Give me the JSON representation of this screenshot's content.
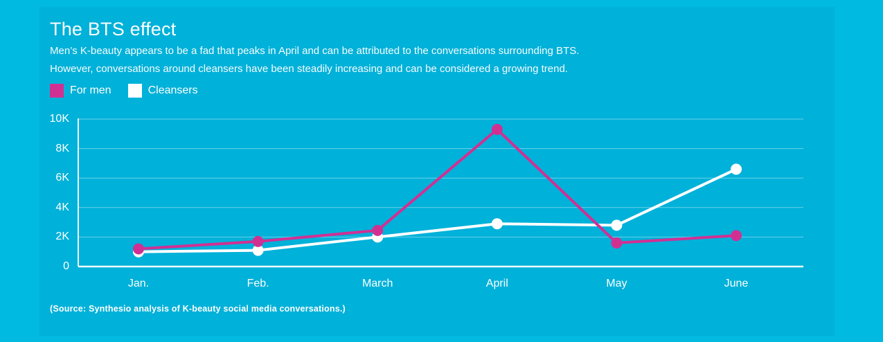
{
  "header": {
    "title": "The BTS effect",
    "subtitle_line1": "Men’s K-beauty appears to be a fad that peaks in April and can be attributed to the conversations surrounding BTS.",
    "subtitle_line2": "However, conversations around cleansers have been steadily increasing and can be considered a growing trend."
  },
  "legend": [
    {
      "label": "For men",
      "color": "#d13093"
    },
    {
      "label": "Cleansers",
      "color": "#ffffff"
    }
  ],
  "source_note": "(Source: Synthesio analysis of K-beauty social media conversations.)",
  "colors": {
    "page_background": "#00bae2",
    "card_background": "#00b1d9",
    "series_for_men": "#d13093",
    "series_cleansers": "#ffffff",
    "gridline": "rgba(255,255,255,0.42)",
    "axis_line": "#f0fbfd",
    "text": "#ffffff"
  },
  "chart_data": {
    "type": "line",
    "categories": [
      "Jan.",
      "Feb.",
      "March",
      "April",
      "May",
      "June"
    ],
    "series": [
      {
        "name": "For men",
        "color": "#d13093",
        "values": [
          1200,
          1700,
          2450,
          9300,
          1600,
          2100
        ]
      },
      {
        "name": "Cleansers",
        "color": "#ffffff",
        "values": [
          1000,
          1100,
          2000,
          2900,
          2800,
          6600
        ]
      }
    ],
    "title": "The BTS effect",
    "xlabel": "",
    "ylabel": "",
    "ylim": [
      0,
      10000
    ],
    "ytick_step": 2000,
    "ytick_labels": [
      "0",
      "2K",
      "4K",
      "6K",
      "8K",
      "10K"
    ],
    "grid": "horizontal",
    "legend_position": "top-left"
  }
}
